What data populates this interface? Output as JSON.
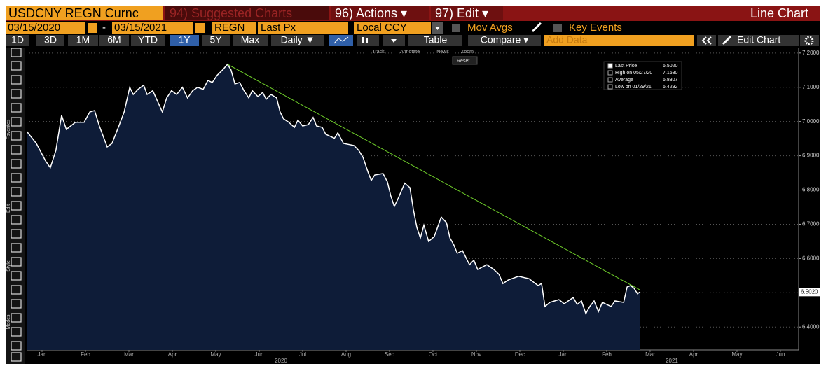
{
  "header": {
    "ticker": "USDCNY REGN Curnc",
    "suggested": "94) Suggested Charts",
    "actions": "96) Actions ▾",
    "edit": "97) Edit ▾",
    "view": "Line Chart"
  },
  "controls": {
    "start": "03/15/2020",
    "dash": "-",
    "end": "03/15/2021",
    "source": "REGN",
    "field": "Last Px",
    "currency": "Local CCY",
    "mov_avgs": "Mov Avgs",
    "key_events": "Key Events",
    "periods": [
      "1D",
      "3D",
      "1M",
      "6M",
      "YTD",
      "1Y",
      "5Y",
      "Max"
    ],
    "frequency": "Daily ▼",
    "table": "Table",
    "compare": "Compare ▾",
    "add_data": "Add Data",
    "edit_chart": "Edit Chart"
  },
  "chart_tools": [
    "Track",
    "Annotate",
    "News",
    "Zoom"
  ],
  "reset": "Reset",
  "side_labels": [
    "Favorites",
    "Edit",
    "Style",
    "Modes"
  ],
  "chart_data": {
    "type": "line",
    "x": [
      0.15,
      0.37,
      0.58,
      0.69,
      0.82,
      0.95,
      1.06,
      1.27,
      1.47,
      1.6,
      1.71,
      1.82,
      2.0,
      2.11,
      2.27,
      2.39,
      2.52,
      2.6,
      2.71,
      2.84,
      2.92,
      3.05,
      3.16,
      3.27,
      3.37,
      3.48,
      3.6,
      3.73,
      3.85,
      3.97,
      4.08,
      4.21,
      4.32,
      4.42,
      4.53,
      4.66,
      4.77,
      4.85,
      4.94,
      5.05,
      5.15,
      5.26,
      5.34,
      5.47,
      5.58,
      5.66,
      5.77,
      5.9,
      5.98,
      6.06,
      6.18,
      6.31,
      6.39,
      6.5,
      6.63,
      6.74,
      6.82,
      6.95,
      7.03,
      7.23,
      7.31,
      7.44,
      7.68,
      7.79,
      7.89,
      8.0,
      8.08,
      8.16,
      8.35,
      8.45,
      8.53,
      8.61,
      8.69,
      8.85,
      8.97,
      9.05,
      9.13,
      9.21,
      9.29,
      9.4,
      9.53,
      9.69,
      9.81,
      9.89,
      9.98,
      10.06,
      10.18,
      10.34,
      10.44,
      10.53,
      10.74,
      10.9,
      11.02,
      11.11,
      11.23,
      11.47,
      11.71,
      11.92,
      12.0,
      12.08,
      12.19,
      12.4,
      12.52,
      12.73,
      12.82,
      12.92,
      13.02,
      13.11,
      13.21,
      13.31,
      13.4,
      13.6,
      13.69,
      13.89,
      13.97,
      14.05,
      14.13,
      14.21,
      14.26
    ],
    "series": [
      {
        "name": "Last Price",
        "color": "#ffffff",
        "area_color": "#0e1c38",
        "values": [
          6.971,
          6.936,
          6.885,
          6.865,
          6.916,
          7.018,
          6.977,
          6.998,
          6.998,
          7.028,
          7.032,
          6.987,
          6.926,
          6.936,
          6.987,
          7.028,
          7.1,
          7.079,
          7.094,
          7.106,
          7.079,
          7.09,
          7.059,
          7.028,
          7.069,
          7.09,
          7.079,
          7.1,
          7.069,
          7.09,
          7.1,
          7.094,
          7.12,
          7.114,
          7.135,
          7.151,
          7.167,
          7.151,
          7.11,
          7.114,
          7.09,
          7.069,
          7.09,
          7.073,
          7.085,
          7.065,
          7.079,
          7.069,
          7.028,
          7.008,
          6.998,
          6.983,
          7.004,
          6.987,
          6.991,
          7.012,
          6.987,
          6.983,
          6.963,
          6.951,
          6.967,
          6.936,
          6.93,
          6.916,
          6.895,
          6.854,
          6.828,
          6.844,
          6.848,
          6.824,
          6.783,
          6.752,
          6.773,
          6.82,
          6.807,
          6.742,
          6.691,
          6.66,
          6.697,
          6.65,
          6.664,
          6.721,
          6.705,
          6.66,
          6.64,
          6.615,
          6.623,
          6.582,
          6.595,
          6.568,
          6.582,
          6.568,
          6.554,
          6.527,
          6.537,
          6.548,
          6.541,
          6.521,
          6.527,
          6.46,
          6.472,
          6.48,
          6.468,
          6.486,
          6.466,
          6.476,
          6.439,
          6.46,
          6.476,
          6.445,
          6.472,
          6.46,
          6.476,
          6.472,
          6.517,
          6.521,
          6.513,
          6.497,
          6.502
        ]
      }
    ],
    "xlim": [
      0.145,
      17.92
    ],
    "xticks": [
      {
        "value": 0.5,
        "label": "Jan"
      },
      {
        "value": 1.5,
        "label": "Feb"
      },
      {
        "value": 2.5,
        "label": "Mar"
      },
      {
        "value": 3.5,
        "label": "Apr"
      },
      {
        "value": 4.5,
        "label": "May"
      },
      {
        "value": 5.5,
        "label": "Jun"
      },
      {
        "value": 6.5,
        "label": "Jul"
      },
      {
        "value": 7.5,
        "label": "Aug"
      },
      {
        "value": 8.5,
        "label": "Sep"
      },
      {
        "value": 9.5,
        "label": "Oct"
      },
      {
        "value": 10.5,
        "label": "Nov"
      },
      {
        "value": 11.5,
        "label": "Dec"
      },
      {
        "value": 12.5,
        "label": "Jan"
      },
      {
        "value": 13.5,
        "label": "Feb"
      },
      {
        "value": 14.5,
        "label": "Mar"
      },
      {
        "value": 15.5,
        "label": "Apr"
      },
      {
        "value": 16.5,
        "label": "May"
      },
      {
        "value": 17.5,
        "label": "Jun"
      }
    ],
    "year_ticks": [
      {
        "value": 6,
        "label": "2020"
      },
      {
        "value": 15,
        "label": "2021"
      }
    ],
    "ylim": [
      6.333,
      7.216
    ],
    "yticks": [
      {
        "value": 6.4,
        "label": "6.4000"
      },
      {
        "value": 6.5,
        "label": "6.5000"
      },
      {
        "value": 6.6,
        "label": "6.6000"
      },
      {
        "value": 6.7,
        "label": "6.7000"
      },
      {
        "value": 6.8,
        "label": "6.8000"
      },
      {
        "value": 6.9,
        "label": "6.9000"
      },
      {
        "value": 7.0,
        "label": "7.0000"
      },
      {
        "value": 7.1,
        "label": "7.1000"
      },
      {
        "value": 7.2,
        "label": "7.2000"
      }
    ],
    "grid": true,
    "last_label": {
      "value": 6.502,
      "label": "6.5020"
    },
    "stats": [
      {
        "label": "High on 05/27/20",
        "value": "7.1680"
      },
      {
        "label": "Average",
        "value": "6.8307"
      },
      {
        "label": "Low on 01/29/21",
        "value": "6.4292"
      }
    ]
  }
}
